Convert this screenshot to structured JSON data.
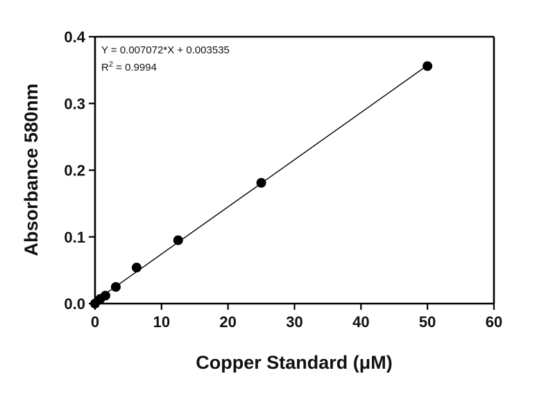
{
  "chart_data": {
    "type": "scatter",
    "xlabel": "Copper Standard (μM)",
    "ylabel": "Absorbance 580nm",
    "xlim": [
      0,
      60
    ],
    "ylim": [
      0,
      0.4
    ],
    "x_ticks": [
      "0",
      "10",
      "20",
      "30",
      "40",
      "50",
      "60"
    ],
    "y_ticks": [
      "0.0",
      "0.1",
      "0.2",
      "0.3",
      "0.4"
    ],
    "x_tick_values": [
      0,
      10,
      20,
      30,
      40,
      50,
      60
    ],
    "y_tick_values": [
      0,
      0.1,
      0.2,
      0.3,
      0.4
    ],
    "grid": false,
    "series": [
      {
        "x": [
          0,
          0.78,
          1.56,
          3.125,
          6.25,
          12.5,
          25,
          50
        ],
        "y": [
          0.0,
          0.007,
          0.012,
          0.025,
          0.054,
          0.095,
          0.181,
          0.356
        ]
      }
    ],
    "fit": {
      "slope": 0.007072,
      "intercept": 0.003535,
      "x_range": [
        0,
        50
      ]
    },
    "annotations": {
      "equation": "Y = 0.007072*X + 0.003535",
      "r2_prefix": "R",
      "r2_superscript": "2",
      "r2_value": " = 0.9994"
    }
  }
}
